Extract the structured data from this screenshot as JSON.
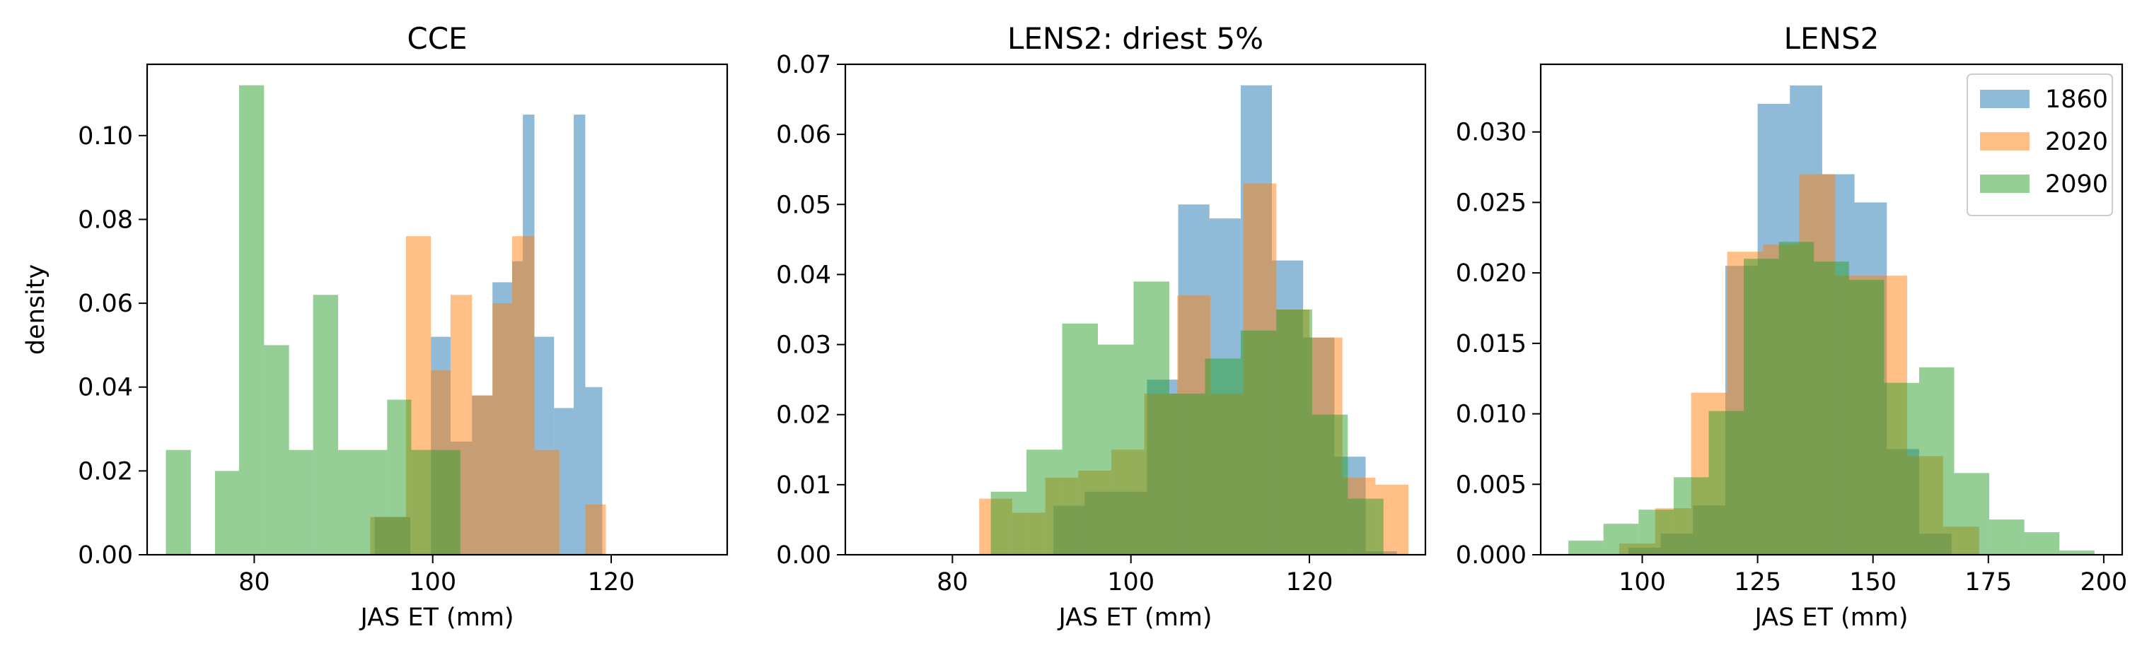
{
  "colors": {
    "1860": "#1f77b4",
    "2020": "#ff7f0e",
    "2090": "#2ca02c"
  },
  "legend": {
    "placement": "top-right",
    "entries": [
      "1860",
      "2020",
      "2090"
    ]
  },
  "chart_data": [
    {
      "type": "histogram",
      "title": "CCE",
      "xlabel": "JAS ET (mm)",
      "ylabel": "density",
      "xlim": [
        68,
        133
      ],
      "ylim": [
        0,
        0.117
      ],
      "xticks": [
        80,
        100,
        120
      ],
      "yticks": [
        0.0,
        0.02,
        0.04,
        0.06,
        0.08,
        0.1
      ],
      "ytick_labels": [
        "0.00",
        "0.02",
        "0.04",
        "0.06",
        "0.08",
        "0.10"
      ],
      "grid": false,
      "series": [
        {
          "name": "1860",
          "bins": [
            [
              93.5,
              97.5,
              0.009
            ],
            [
              99.8,
              102,
              0.052
            ],
            [
              102,
              104.4,
              0.027
            ],
            [
              104.4,
              106.7,
              0.038
            ],
            [
              106.7,
              108.9,
              0.065
            ],
            [
              108.9,
              110.1,
              0.07
            ],
            [
              110.1,
              111.4,
              0.105
            ],
            [
              111.4,
              113.6,
              0.052
            ],
            [
              113.6,
              115.8,
              0.035
            ],
            [
              115.8,
              117.1,
              0.105
            ],
            [
              117.1,
              119,
              0.04
            ]
          ]
        },
        {
          "name": "2020",
          "bins": [
            [
              93,
              97,
              0.009
            ],
            [
              97,
              99.8,
              0.076
            ],
            [
              99.8,
              102,
              0.044
            ],
            [
              102,
              104.4,
              0.062
            ],
            [
              104.4,
              106.7,
              0.038
            ],
            [
              106.7,
              108.9,
              0.06
            ],
            [
              108.9,
              111.4,
              0.076
            ],
            [
              111.4,
              114.2,
              0.025
            ],
            [
              117.1,
              119.4,
              0.012
            ]
          ]
        },
        {
          "name": "2090",
          "bins": [
            [
              70.1,
              72.9,
              0.025
            ],
            [
              75.6,
              78.3,
              0.02
            ],
            [
              78.3,
              81.1,
              0.112
            ],
            [
              81.1,
              83.9,
              0.05
            ],
            [
              83.9,
              86.6,
              0.025
            ],
            [
              86.6,
              89.4,
              0.062
            ],
            [
              89.4,
              92.1,
              0.025
            ],
            [
              92.1,
              94.9,
              0.025
            ],
            [
              94.9,
              97.6,
              0.037
            ],
            [
              97.6,
              100.4,
              0.025
            ],
            [
              100.4,
              103.1,
              0.025
            ]
          ]
        }
      ]
    },
    {
      "type": "histogram",
      "title": "LENS2: driest 5%",
      "xlabel": "JAS ET (mm)",
      "ylabel": "",
      "xlim": [
        68,
        133
      ],
      "ylim": [
        0,
        0.07
      ],
      "xticks": [
        80,
        100,
        120
      ],
      "yticks": [
        0.0,
        0.01,
        0.02,
        0.03,
        0.04,
        0.05,
        0.06,
        0.07
      ],
      "ytick_labels": [
        "0.00",
        "0.01",
        "0.02",
        "0.03",
        "0.04",
        "0.05",
        "0.06",
        "0.07"
      ],
      "grid": false,
      "series": [
        {
          "name": "1860",
          "bins": [
            [
              91.3,
              94.8,
              0.007
            ],
            [
              94.8,
              98.3,
              0.009
            ],
            [
              98.3,
              101.8,
              0.009
            ],
            [
              101.8,
              105.3,
              0.025
            ],
            [
              105.3,
              108.8,
              0.05
            ],
            [
              108.8,
              112.3,
              0.048
            ],
            [
              112.3,
              115.8,
              0.067
            ],
            [
              115.8,
              119.3,
              0.042
            ],
            [
              119.3,
              122.8,
              0.031
            ],
            [
              122.8,
              126.3,
              0.014
            ],
            [
              126.3,
              129.8,
              0.0005
            ]
          ]
        },
        {
          "name": "2020",
          "bins": [
            [
              83,
              86.7,
              0.008
            ],
            [
              86.7,
              90.4,
              0.006
            ],
            [
              90.4,
              94.1,
              0.011
            ],
            [
              94.1,
              97.8,
              0.012
            ],
            [
              97.8,
              101.5,
              0.015
            ],
            [
              101.5,
              105.2,
              0.023
            ],
            [
              105.2,
              108.9,
              0.037
            ],
            [
              108.9,
              112.6,
              0.023
            ],
            [
              112.6,
              116.3,
              0.053
            ],
            [
              116.3,
              120,
              0.035
            ],
            [
              120,
              123.7,
              0.031
            ],
            [
              123.7,
              127.4,
              0.011
            ],
            [
              127.4,
              131.1,
              0.01
            ]
          ]
        },
        {
          "name": "2090",
          "bins": [
            [
              84.3,
              88.3,
              0.009
            ],
            [
              88.3,
              92.3,
              0.015
            ],
            [
              92.3,
              96.3,
              0.033
            ],
            [
              96.3,
              100.3,
              0.03
            ],
            [
              100.3,
              104.3,
              0.039
            ],
            [
              104.3,
              108.3,
              0.023
            ],
            [
              108.3,
              112.3,
              0.028
            ],
            [
              112.3,
              116.3,
              0.032
            ],
            [
              116.3,
              120.3,
              0.035
            ],
            [
              120.3,
              124.3,
              0.02
            ],
            [
              124.3,
              128.3,
              0.008
            ]
          ]
        }
      ]
    },
    {
      "type": "histogram",
      "title": "LENS2",
      "xlabel": "JAS ET (mm)",
      "ylabel": "",
      "xlim": [
        78,
        204
      ],
      "ylim": [
        0,
        0.0348
      ],
      "xticks": [
        100,
        125,
        150,
        175,
        200
      ],
      "yticks": [
        0.0,
        0.005,
        0.01,
        0.015,
        0.02,
        0.025,
        0.03
      ],
      "ytick_labels": [
        "0.000",
        "0.005",
        "0.010",
        "0.015",
        "0.020",
        "0.025",
        "0.030"
      ],
      "grid": false,
      "legend": "top-right",
      "series": [
        {
          "name": "1860",
          "bins": [
            [
              97,
              104,
              0.0005
            ],
            [
              104,
              111,
              0.0015
            ],
            [
              111,
              118,
              0.0035
            ],
            [
              118,
              125,
              0.0205
            ],
            [
              125,
              132,
              0.032
            ],
            [
              132,
              139,
              0.0333
            ],
            [
              139,
              146,
              0.027
            ],
            [
              146,
              153,
              0.025
            ],
            [
              153,
              160,
              0.0075
            ],
            [
              160,
              167,
              0.0015
            ]
          ]
        },
        {
          "name": "2020",
          "bins": [
            [
              95,
              102.8,
              0.0008
            ],
            [
              102.8,
              110.6,
              0.0033
            ],
            [
              110.6,
              118.4,
              0.0115
            ],
            [
              118.4,
              126.2,
              0.0215
            ],
            [
              126.2,
              134,
              0.022
            ],
            [
              134,
              141.8,
              0.027
            ],
            [
              141.8,
              149.6,
              0.0198
            ],
            [
              149.6,
              157.4,
              0.0198
            ],
            [
              157.4,
              165.2,
              0.007
            ],
            [
              165.2,
              173,
              0.002
            ]
          ]
        },
        {
          "name": "2090",
          "bins": [
            [
              84,
              91.6,
              0.001
            ],
            [
              91.6,
              99.2,
              0.0022
            ],
            [
              99.2,
              106.8,
              0.0032
            ],
            [
              106.8,
              114.4,
              0.0055
            ],
            [
              114.4,
              122,
              0.0102
            ],
            [
              122,
              129.6,
              0.021
            ],
            [
              129.6,
              137.2,
              0.0222
            ],
            [
              137.2,
              144.8,
              0.0208
            ],
            [
              144.8,
              152.4,
              0.0195
            ],
            [
              152.4,
              160,
              0.0122
            ],
            [
              160,
              167.6,
              0.0133
            ],
            [
              167.6,
              175.2,
              0.0058
            ],
            [
              175.2,
              182.8,
              0.0025
            ],
            [
              182.8,
              190.4,
              0.0016
            ],
            [
              190.4,
              198,
              0.0003
            ]
          ]
        }
      ]
    }
  ]
}
